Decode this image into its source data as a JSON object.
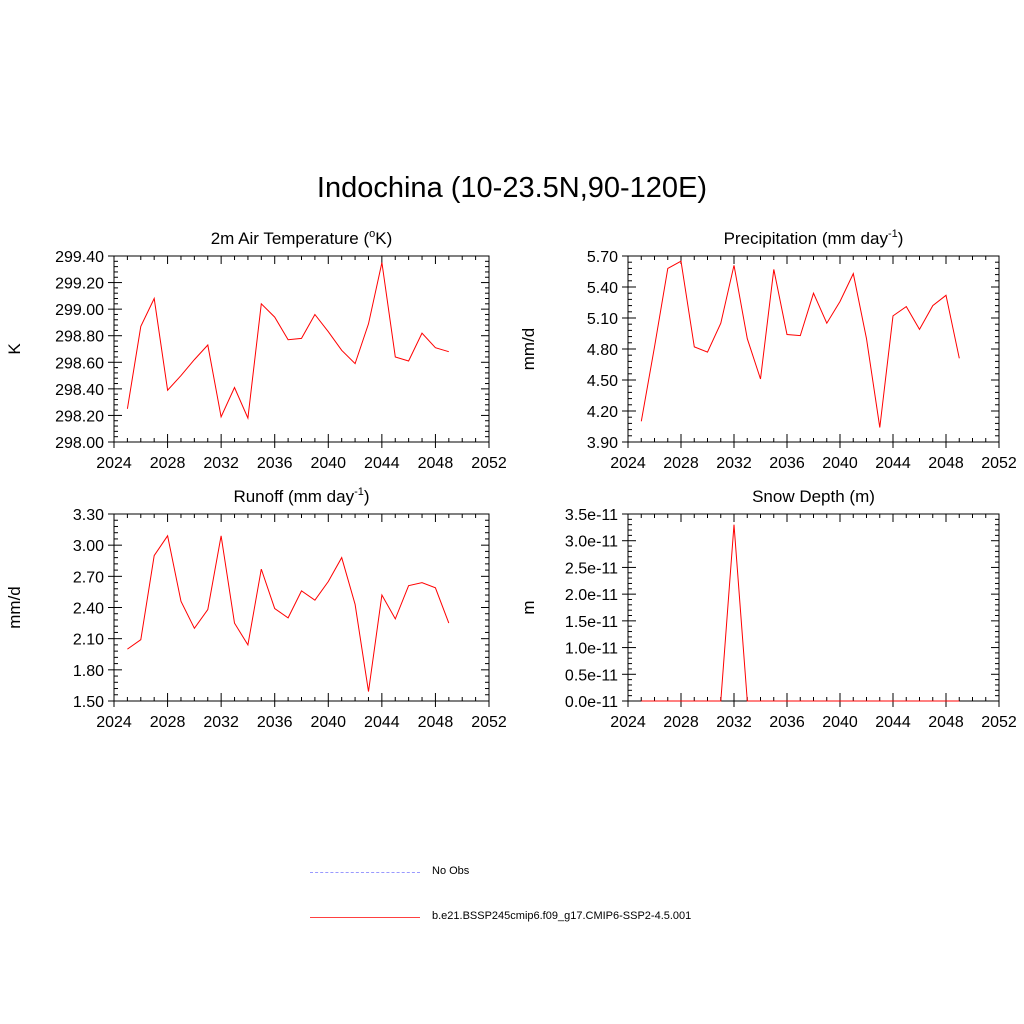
{
  "title": "Indochina (10-23.5N,90-120E)",
  "legend": [
    {
      "label": "No Obs",
      "color": "#9999ff",
      "style": "dashed"
    },
    {
      "label": "b.e21.BSSP245cmip6.f09_g17.CMIP6-SSP2-4.5.001",
      "color": "#ff4040",
      "style": "solid"
    }
  ],
  "chart_data": [
    {
      "type": "line",
      "title": "2m Air Temperature (",
      "title_sup": "o",
      "title_tail": "K)",
      "ylabel": "K",
      "xlim": [
        2024,
        2052
      ],
      "x_ticks": [
        2024,
        2028,
        2032,
        2036,
        2040,
        2044,
        2048,
        2052
      ],
      "ylim": [
        298.0,
        299.4
      ],
      "y_ticks": [
        "298.00",
        "298.20",
        "298.40",
        "298.60",
        "298.80",
        "299.00",
        "299.20",
        "299.40"
      ],
      "y_tick_values": [
        298.0,
        298.2,
        298.4,
        298.6,
        298.8,
        299.0,
        299.2,
        299.4
      ],
      "series": [
        {
          "color": "#ff0000",
          "x": [
            2025,
            2026,
            2027,
            2028,
            2029,
            2030,
            2031,
            2032,
            2033,
            2034,
            2035,
            2036,
            2037,
            2038,
            2039,
            2040,
            2041,
            2042,
            2043,
            2044,
            2045,
            2046,
            2047,
            2048,
            2049
          ],
          "y": [
            298.25,
            298.87,
            299.08,
            298.39,
            298.5,
            298.62,
            298.73,
            298.19,
            298.41,
            298.18,
            299.04,
            298.94,
            298.77,
            298.78,
            298.96,
            298.83,
            298.69,
            298.59,
            298.89,
            299.35,
            298.64,
            298.61,
            298.82,
            298.71,
            298.68
          ]
        }
      ]
    },
    {
      "type": "line",
      "title": "Precipitation (mm day",
      "title_sup": "-1",
      "title_tail": ")",
      "ylabel": "mm/d",
      "xlim": [
        2024,
        2052
      ],
      "x_ticks": [
        2024,
        2028,
        2032,
        2036,
        2040,
        2044,
        2048,
        2052
      ],
      "ylim": [
        3.9,
        5.7
      ],
      "y_ticks": [
        "3.90",
        "4.20",
        "4.50",
        "4.80",
        "5.10",
        "5.40",
        "5.70"
      ],
      "y_tick_values": [
        3.9,
        4.2,
        4.5,
        4.8,
        5.1,
        5.4,
        5.7
      ],
      "series": [
        {
          "color": "#ff0000",
          "x": [
            2025,
            2026,
            2027,
            2028,
            2029,
            2030,
            2031,
            2032,
            2033,
            2034,
            2035,
            2036,
            2037,
            2038,
            2039,
            2040,
            2041,
            2042,
            2043,
            2044,
            2045,
            2046,
            2047,
            2048,
            2049
          ],
          "y": [
            4.1,
            4.82,
            5.58,
            5.65,
            4.82,
            4.77,
            5.05,
            5.61,
            4.9,
            4.51,
            5.57,
            4.94,
            4.93,
            5.34,
            5.05,
            5.26,
            5.53,
            4.9,
            4.04,
            5.12,
            5.21,
            4.99,
            5.22,
            5.32,
            4.71
          ]
        }
      ]
    },
    {
      "type": "line",
      "title": "Runoff (mm day",
      "title_sup": "-1",
      "title_tail": ")",
      "ylabel": "mm/d",
      "xlim": [
        2024,
        2052
      ],
      "x_ticks": [
        2024,
        2028,
        2032,
        2036,
        2040,
        2044,
        2048,
        2052
      ],
      "ylim": [
        1.5,
        3.3
      ],
      "y_ticks": [
        "1.50",
        "1.80",
        "2.10",
        "2.40",
        "2.70",
        "3.00",
        "3.30"
      ],
      "y_tick_values": [
        1.5,
        1.8,
        2.1,
        2.4,
        2.7,
        3.0,
        3.3
      ],
      "series": [
        {
          "color": "#ff0000",
          "x": [
            2025,
            2026,
            2027,
            2028,
            2029,
            2030,
            2031,
            2032,
            2033,
            2034,
            2035,
            2036,
            2037,
            2038,
            2039,
            2040,
            2041,
            2042,
            2043,
            2044,
            2045,
            2046,
            2047,
            2048,
            2049
          ],
          "y": [
            2.0,
            2.09,
            2.9,
            3.09,
            2.46,
            2.2,
            2.38,
            3.09,
            2.25,
            2.04,
            2.77,
            2.39,
            2.3,
            2.56,
            2.47,
            2.65,
            2.88,
            2.43,
            1.59,
            2.52,
            2.29,
            2.61,
            2.64,
            2.59,
            2.25
          ]
        }
      ]
    },
    {
      "type": "line",
      "title": "Snow Depth (m)",
      "title_sup": "",
      "title_tail": "",
      "ylabel": "m",
      "xlim": [
        2024,
        2052
      ],
      "x_ticks": [
        2024,
        2028,
        2032,
        2036,
        2040,
        2044,
        2048,
        2052
      ],
      "ylim": [
        0.0,
        3.5
      ],
      "y_ticks": [
        "0.0e-11",
        "0.5e-11",
        "1.0e-11",
        "1.5e-11",
        "2.0e-11",
        "2.5e-11",
        "3.0e-11",
        "3.5e-11"
      ],
      "y_tick_values": [
        0.0,
        0.5,
        1.0,
        1.5,
        2.0,
        2.5,
        3.0,
        3.5
      ],
      "y_unit": "1e-11",
      "series": [
        {
          "color": "#ff0000",
          "x": [
            2025,
            2026,
            2027,
            2028,
            2029,
            2030,
            2031,
            2032,
            2033,
            2034,
            2035,
            2036,
            2037,
            2038,
            2039,
            2040,
            2041,
            2042,
            2043,
            2044,
            2045,
            2046,
            2047,
            2048,
            2049
          ],
          "y": [
            0,
            0,
            0,
            0,
            0,
            0,
            0,
            3.3,
            0,
            0,
            0,
            0,
            0,
            0,
            0,
            0,
            0,
            0,
            0,
            0,
            0,
            0,
            0,
            0,
            0
          ]
        }
      ]
    }
  ]
}
